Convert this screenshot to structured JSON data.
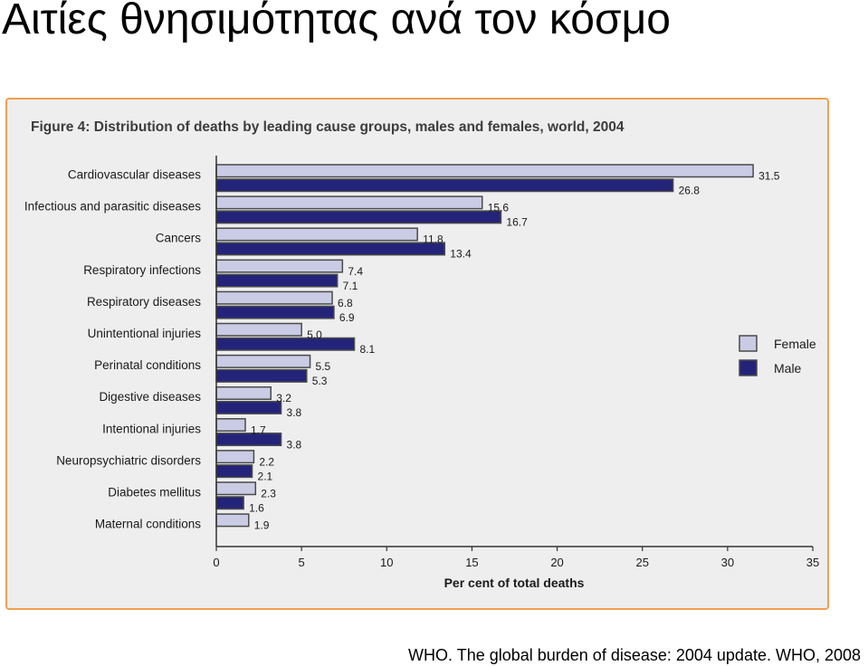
{
  "slide": {
    "title": "Αιτίες θνησιμότητας ανά τον κόσμο",
    "source": "WHO. The global burden of disease: 2004 update. WHO, 2008"
  },
  "chart_data": {
    "type": "bar",
    "orientation": "horizontal",
    "title": "Figure 4: Distribution of deaths by leading cause groups, males and females, world, 2004",
    "xlabel": "Per cent of total deaths",
    "ylabel": "",
    "xlim": [
      0,
      35
    ],
    "xticks": [
      0,
      5,
      10,
      15,
      20,
      25,
      30,
      35
    ],
    "categories": [
      "Cardiovascular diseases",
      "Infectious and parasitic diseases",
      "Cancers",
      "Respiratory infections",
      "Respiratory diseases",
      "Unintentional injuries",
      "Perinatal conditions",
      "Digestive diseases",
      "Intentional injuries",
      "Neuropsychiatric disorders",
      "Diabetes mellitus",
      "Maternal conditions"
    ],
    "series": [
      {
        "name": "Female",
        "color": "#c9cce4",
        "values": [
          31.5,
          15.6,
          11.8,
          7.4,
          6.8,
          5.0,
          5.5,
          3.2,
          1.7,
          2.2,
          2.3,
          1.9
        ],
        "labels": [
          "31.5",
          "15.6",
          "11.8",
          "7.4",
          "6.8",
          "5.0",
          "5.5",
          "3.2",
          "1.7",
          "2.2",
          "2.3",
          "1.9"
        ]
      },
      {
        "name": "Male",
        "color": "#23237a",
        "values": [
          26.8,
          16.7,
          13.4,
          7.1,
          6.9,
          8.1,
          5.3,
          3.8,
          3.8,
          2.1,
          1.6,
          null
        ],
        "labels": [
          "26.8",
          "16.7",
          "13.4",
          "7.1",
          "6.9",
          "8.1",
          "5.3",
          "3.8",
          "3.8",
          "2.1",
          "1.6",
          ""
        ]
      }
    ],
    "legend": "right",
    "grid": false
  }
}
